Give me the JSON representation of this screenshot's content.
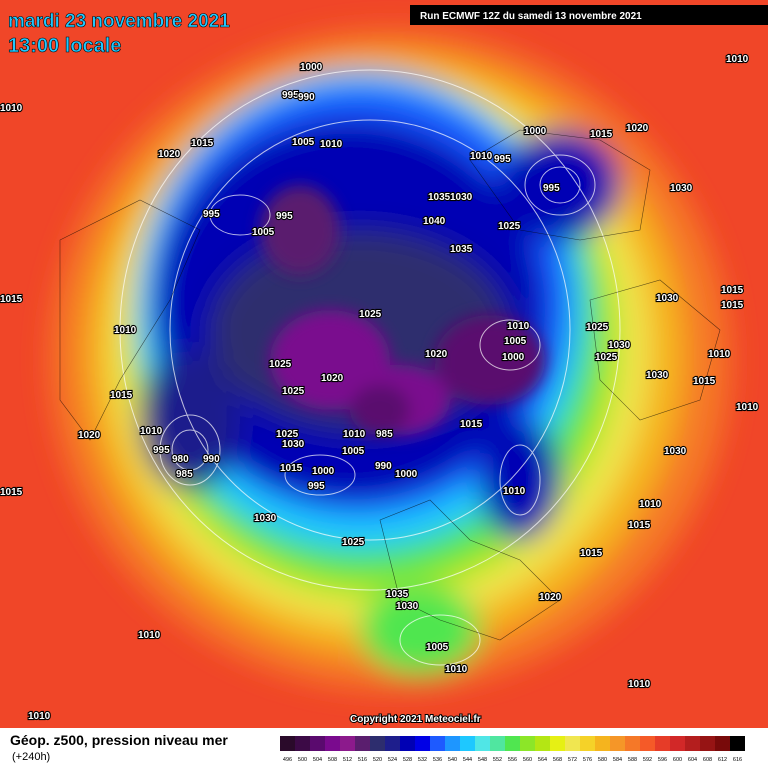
{
  "header": {
    "title": "mardi 23 novembre 2021",
    "subtitle": "13:00 locale",
    "run": "Run ECMWF 12Z du samedi 13 novembre 2021"
  },
  "isobar_labels": [
    "1000",
    "995",
    "990",
    "1010",
    "1005",
    "1010",
    "1015",
    "1020",
    "1000",
    "1015",
    "1020",
    "1010",
    "995",
    "995",
    "1030",
    "1035",
    "1030",
    "1040",
    "1025",
    "1035",
    "995",
    "995",
    "1005",
    "1025",
    "1010",
    "1005",
    "1000",
    "1020",
    "1025",
    "1030",
    "1025",
    "1030",
    "1030",
    "1015",
    "1015",
    "1010",
    "1015",
    "1010",
    "1010",
    "1015",
    "1020",
    "1025",
    "1020",
    "1025",
    "980",
    "985",
    "990",
    "995",
    "1010",
    "1025",
    "1030",
    "1015",
    "1000",
    "995",
    "1010",
    "1005",
    "985",
    "990",
    "1000",
    "1015",
    "1010",
    "1030",
    "1025",
    "1015",
    "1015",
    "1010",
    "1030",
    "1035",
    "1030",
    "1020",
    "1010",
    "1005",
    "1010",
    "1010",
    "1010",
    "1015",
    "1015",
    "1010"
  ],
  "copyright": "Copyright 2021 Meteociel.fr",
  "footer": {
    "title": "Géop. z500, pression niveau mer",
    "subtitle": "(+240h)"
  },
  "colorbar": {
    "labels": [
      "496",
      "500",
      "504",
      "508",
      "512",
      "516",
      "520",
      "524",
      "528",
      "532",
      "536",
      "540",
      "544",
      "548",
      "552",
      "556",
      "560",
      "564",
      "568",
      "572",
      "576",
      "580",
      "584",
      "588",
      "592",
      "596",
      "600",
      "604",
      "608",
      "612",
      "616"
    ],
    "colors": [
      "#2a0a2a",
      "#3c0a46",
      "#5a0a6e",
      "#7a0a8e",
      "#8c1a8c",
      "#5a1e6e",
      "#2d2d6e",
      "#1e1e8c",
      "#0000b4",
      "#0000e6",
      "#1e5aff",
      "#1e96ff",
      "#1ec8ff",
      "#50e6e6",
      "#50e6a0",
      "#50e650",
      "#8ce628",
      "#b4e614",
      "#e6f014",
      "#f0e650",
      "#f5d228",
      "#f5b41e",
      "#f59628",
      "#f57828",
      "#f55a28",
      "#e63c28",
      "#d22828",
      "#b41e1e",
      "#961414",
      "#780a0a",
      "#000000"
    ]
  }
}
